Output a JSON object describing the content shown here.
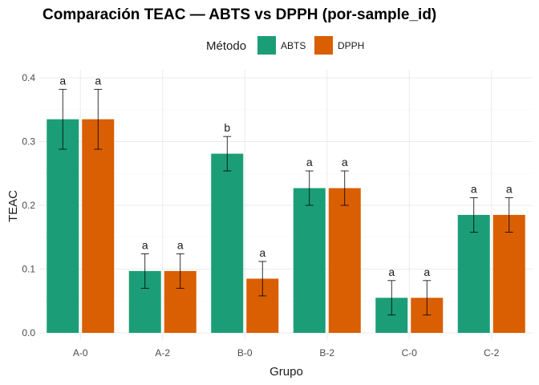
{
  "chart_data": {
    "type": "bar",
    "title": "Comparación TEAC — ABTS vs DPPH (por-sample_id)",
    "xlabel": "Grupo",
    "ylabel": "TEAC",
    "ylim": [
      0,
      0.4
    ],
    "yticks": [
      "0.0",
      "0.1",
      "0.2",
      "0.3",
      "0.4"
    ],
    "grid": true,
    "legend": {
      "title": "Método",
      "position": "top"
    },
    "categories": [
      "A-0",
      "A-2",
      "B-0",
      "B-2",
      "C-0",
      "C-2"
    ],
    "series": [
      {
        "name": "ABTS",
        "color": "#1b9e77",
        "values": [
          0.335,
          0.097,
          0.281,
          0.227,
          0.055,
          0.185
        ],
        "err_low": [
          0.288,
          0.07,
          0.254,
          0.2,
          0.028,
          0.158
        ],
        "err_high": [
          0.382,
          0.124,
          0.308,
          0.254,
          0.082,
          0.212
        ],
        "labels": [
          "a",
          "a",
          "b",
          "a",
          "a",
          "a"
        ]
      },
      {
        "name": "DPPH",
        "color": "#d95f02",
        "values": [
          0.335,
          0.097,
          0.085,
          0.227,
          0.055,
          0.185
        ],
        "err_low": [
          0.288,
          0.07,
          0.058,
          0.2,
          0.028,
          0.158
        ],
        "err_high": [
          0.382,
          0.124,
          0.112,
          0.254,
          0.082,
          0.212
        ],
        "labels": [
          "a",
          "a",
          "a",
          "a",
          "a",
          "a"
        ]
      }
    ]
  }
}
